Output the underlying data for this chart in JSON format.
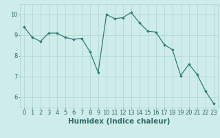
{
  "x": [
    0,
    1,
    2,
    3,
    4,
    5,
    6,
    7,
    8,
    9,
    10,
    11,
    12,
    13,
    14,
    15,
    16,
    17,
    18,
    19,
    20,
    21,
    22,
    23
  ],
  "y": [
    9.4,
    8.9,
    8.7,
    9.1,
    9.1,
    8.9,
    8.8,
    8.85,
    8.2,
    7.2,
    10.0,
    9.8,
    9.85,
    10.1,
    9.6,
    9.2,
    9.15,
    8.55,
    8.3,
    7.05,
    7.6,
    7.1,
    6.3,
    5.7
  ],
  "line_color": "#2d7d74",
  "marker": "D",
  "marker_size": 1.8,
  "linewidth": 0.9,
  "xlabel": "Humidex (Indice chaleur)",
  "xlim": [
    -0.5,
    23.5
  ],
  "ylim": [
    5.5,
    10.5
  ],
  "yticks": [
    6,
    7,
    8,
    9,
    10
  ],
  "xticks": [
    0,
    1,
    2,
    3,
    4,
    5,
    6,
    7,
    8,
    9,
    10,
    11,
    12,
    13,
    14,
    15,
    16,
    17,
    18,
    19,
    20,
    21,
    22,
    23
  ],
  "bg_color": "#ceecea",
  "grid_color": "#aed4d0",
  "label_color": "#2d6b65",
  "xlabel_fontsize": 7.5,
  "tick_fontsize": 6.0
}
